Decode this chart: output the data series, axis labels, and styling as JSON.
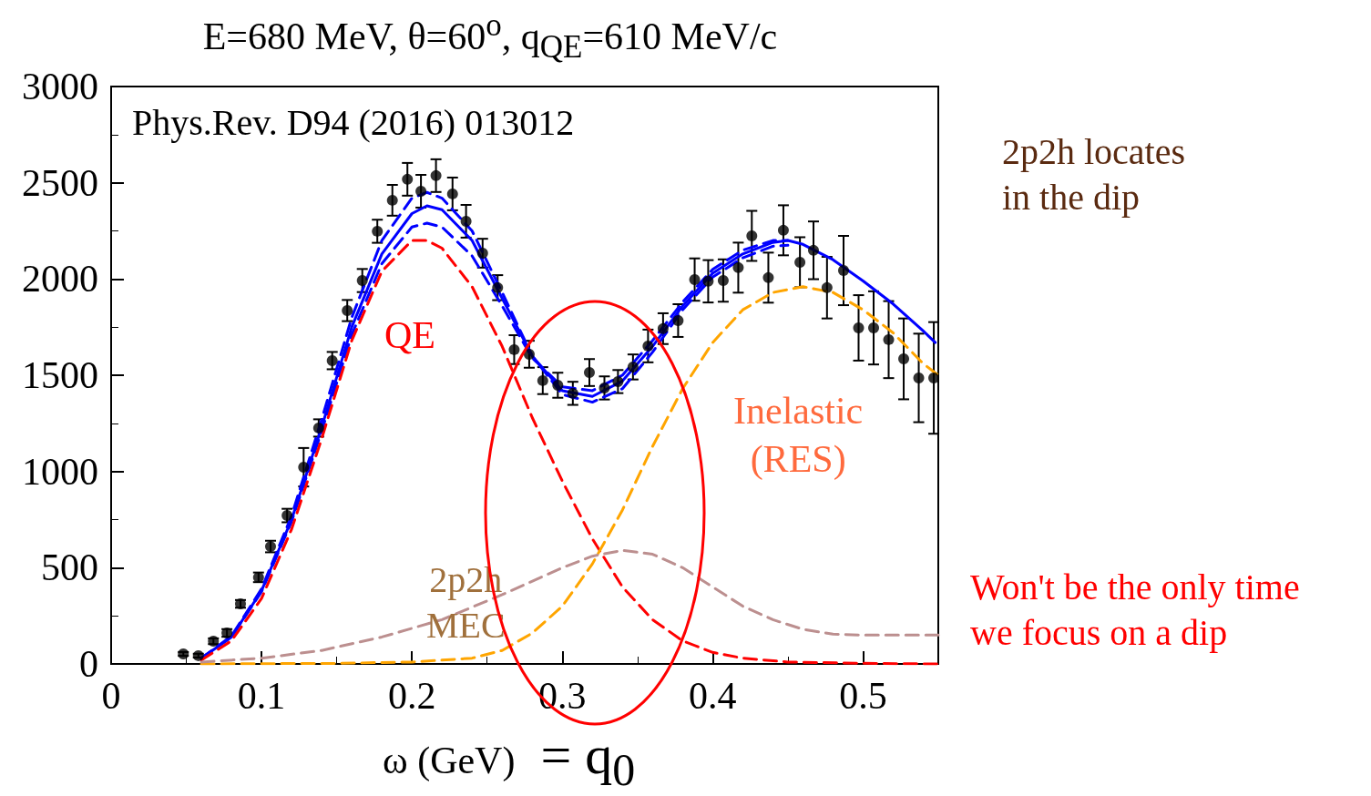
{
  "chart_data": {
    "type": "line",
    "title": "E=680 MeV, θ=60$^{o}$, q$_{QE}$=610 MeV/c",
    "xlabel": "ω (GeV)",
    "xlim": [
      0,
      0.55
    ],
    "xticks": [
      0,
      0.1,
      0.2,
      0.3,
      0.4,
      0.5
    ],
    "ylim": [
      0,
      3000
    ],
    "yticks": [
      0,
      500,
      1000,
      1500,
      2000,
      2500,
      3000
    ],
    "annotations": [
      "Phys.Rev. D94 (2016) 013012",
      "QE",
      "2p2h\nMEC",
      "Inelastic\n(RES)",
      "2p2h locates\nin the dip",
      "Won't be the only time\nwe focus on a dip",
      "= q$_{0}$"
    ],
    "series": [
      {
        "type": "scatter",
        "color": "#000000",
        "marker": "circle",
        "x": [
          0.048,
          0.058,
          0.068,
          0.077,
          0.086,
          0.098,
          0.106,
          0.117,
          0.128,
          0.138,
          0.147,
          0.157,
          0.167,
          0.177,
          0.187,
          0.197,
          0.206,
          0.216,
          0.227,
          0.236,
          0.247,
          0.257,
          0.268,
          0.278,
          0.287,
          0.297,
          0.307,
          0.318,
          0.328,
          0.337,
          0.347,
          0.357,
          0.367,
          0.377,
          0.388,
          0.397,
          0.407,
          0.417,
          0.426,
          0.437,
          0.447,
          0.458,
          0.467,
          0.476,
          0.487,
          0.497,
          0.507,
          0.517,
          0.527,
          0.537,
          0.547
        ],
        "values": [
          52,
          43,
          118,
          161,
          312,
          450,
          610,
          771,
          1022,
          1226,
          1576,
          1836,
          1992,
          2248,
          2409,
          2518,
          2456,
          2537,
          2442,
          2300,
          2134,
          1955,
          1633,
          1609,
          1472,
          1448,
          1406,
          1514,
          1434,
          1467,
          1543,
          1652,
          1742,
          1784,
          1997,
          1988,
          1992,
          2059,
          2224,
          2007,
          2253,
          2087,
          2149,
          1955,
          2044,
          1746,
          1746,
          1685,
          1585,
          1486,
          1486
        ],
        "errors": [
          10,
          10,
          15,
          20,
          20,
          25,
          30,
          35,
          100,
          45,
          45,
          55,
          60,
          60,
          80,
          85,
          85,
          85,
          85,
          85,
          75,
          65,
          75,
          70,
          70,
          65,
          60,
          70,
          60,
          60,
          65,
          85,
          80,
          85,
          110,
          110,
          110,
          130,
          130,
          130,
          130,
          130,
          150,
          160,
          180,
          170,
          190,
          200,
          210,
          230,
          290
        ]
      },
      {
        "color": "#0000ff",
        "line_style": "solid",
        "marker": "none",
        "x": [
          0.06,
          0.08,
          0.1,
          0.12,
          0.14,
          0.16,
          0.18,
          0.2,
          0.21,
          0.22,
          0.24,
          0.26,
          0.28,
          0.3,
          0.32,
          0.34,
          0.36,
          0.38,
          0.4,
          0.42,
          0.44,
          0.45,
          0.46,
          0.48,
          0.5,
          0.52,
          0.54,
          0.548
        ],
        "values": [
          30,
          140,
          380,
          750,
          1230,
          1750,
          2130,
          2340,
          2380,
          2360,
          2200,
          1900,
          1600,
          1420,
          1390,
          1470,
          1650,
          1860,
          2030,
          2130,
          2190,
          2200,
          2180,
          2100,
          1990,
          1870,
          1730,
          1670
        ]
      },
      {
        "type": "line",
        "color": "#0000ff",
        "line_style": "dashed",
        "marker": "none",
        "x": [
          0.06,
          0.08,
          0.1,
          0.12,
          0.14,
          0.16,
          0.18,
          0.2,
          0.21,
          0.22,
          0.24,
          0.26,
          0.28,
          0.3,
          0.32,
          0.34,
          0.36,
          0.38,
          0.4,
          0.42,
          0.44,
          0.45
        ],
        "values": [
          30,
          145,
          390,
          770,
          1270,
          1800,
          2200,
          2420,
          2450,
          2420,
          2250,
          1930,
          1600,
          1400,
          1360,
          1430,
          1620,
          1840,
          2010,
          2110,
          2170,
          2175
        ]
      },
      {
        "type": "line",
        "color": "#0000ff",
        "line_style": "dashed",
        "marker": "none",
        "x": [
          0.06,
          0.08,
          0.1,
          0.12,
          0.14,
          0.16,
          0.18,
          0.2,
          0.21,
          0.22,
          0.24,
          0.26,
          0.28,
          0.3,
          0.32,
          0.34,
          0.36,
          0.38,
          0.4,
          0.42,
          0.44,
          0.45
        ],
        "values": [
          30,
          140,
          375,
          740,
          1210,
          1710,
          2080,
          2270,
          2290,
          2270,
          2120,
          1860,
          1590,
          1440,
          1420,
          1500,
          1680,
          1880,
          2050,
          2150,
          2200,
          2200
        ]
      },
      {
        "color": "#ff0000",
        "line_style": "dashed",
        "marker": "none",
        "x": [
          0.06,
          0.08,
          0.1,
          0.12,
          0.14,
          0.16,
          0.18,
          0.2,
          0.21,
          0.22,
          0.24,
          0.26,
          0.28,
          0.3,
          0.32,
          0.34,
          0.36,
          0.38,
          0.4,
          0.42,
          0.45,
          0.5,
          0.55
        ],
        "values": [
          20,
          120,
          340,
          700,
          1170,
          1680,
          2040,
          2200,
          2200,
          2160,
          1960,
          1650,
          1280,
          950,
          650,
          400,
          230,
          120,
          60,
          30,
          10,
          3,
          0
        ]
      },
      {
        "color": "#ffa500",
        "line_style": "dashed",
        "marker": "none",
        "x": [
          0.06,
          0.15,
          0.2,
          0.24,
          0.26,
          0.28,
          0.3,
          0.32,
          0.34,
          0.36,
          0.38,
          0.4,
          0.42,
          0.44,
          0.46,
          0.48,
          0.5,
          0.52,
          0.54,
          0.55
        ],
        "values": [
          0,
          3,
          10,
          30,
          70,
          160,
          300,
          520,
          800,
          1130,
          1430,
          1670,
          1840,
          1930,
          1960,
          1930,
          1840,
          1720,
          1560,
          1500
        ]
      },
      {
        "color": "#bc8f8f",
        "line_style": "dashed",
        "marker": "none",
        "x": [
          0.06,
          0.1,
          0.14,
          0.18,
          0.22,
          0.26,
          0.3,
          0.32,
          0.34,
          0.36,
          0.38,
          0.4,
          0.42,
          0.44,
          0.46,
          0.48,
          0.5,
          0.55
        ],
        "values": [
          10,
          30,
          70,
          140,
          230,
          360,
          500,
          560,
          590,
          570,
          500,
          400,
          300,
          230,
          180,
          155,
          150,
          150
        ]
      }
    ]
  }
}
